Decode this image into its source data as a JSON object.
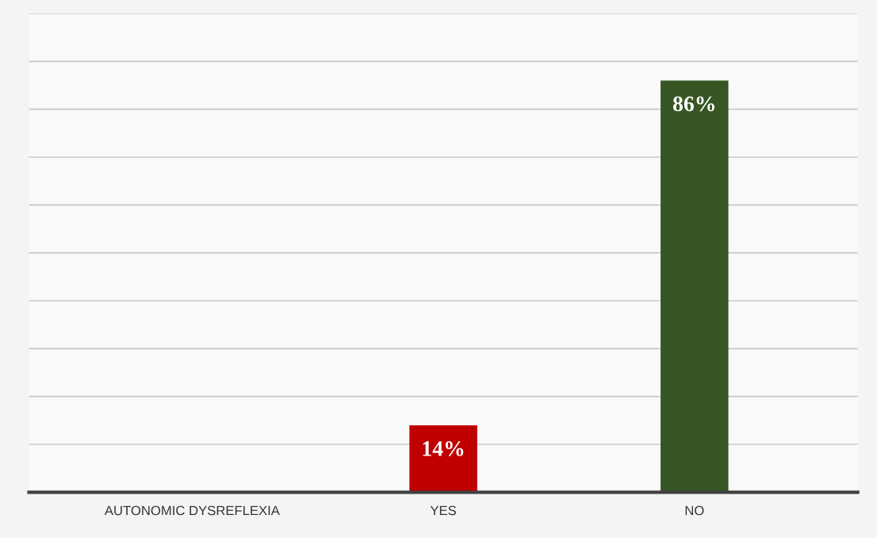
{
  "chart_data": {
    "type": "bar",
    "categories": [
      "AUTONOMIC DYSREFLEXIA",
      "YES",
      "NO"
    ],
    "values": [
      null,
      14,
      86
    ],
    "colors": [
      "#c00000",
      "#c00000",
      "#375623"
    ],
    "value_labels": [
      null,
      "14%",
      "86%"
    ],
    "ylim": [
      0,
      100
    ],
    "yticks": [
      {
        "value": 0,
        "label": null
      },
      {
        "value": 10,
        "label": null
      },
      {
        "value": 20,
        "label": null
      },
      {
        "value": 30,
        "label": null
      },
      {
        "value": 40,
        "label": null
      },
      {
        "value": 50,
        "label": null
      },
      {
        "value": 60,
        "label": null
      },
      {
        "value": 70,
        "label": null
      },
      {
        "value": 80,
        "label": null
      },
      {
        "value": 90,
        "label": null
      },
      {
        "value": 100,
        "label": null
      }
    ],
    "grid": "y",
    "tick_labels": "x"
  }
}
